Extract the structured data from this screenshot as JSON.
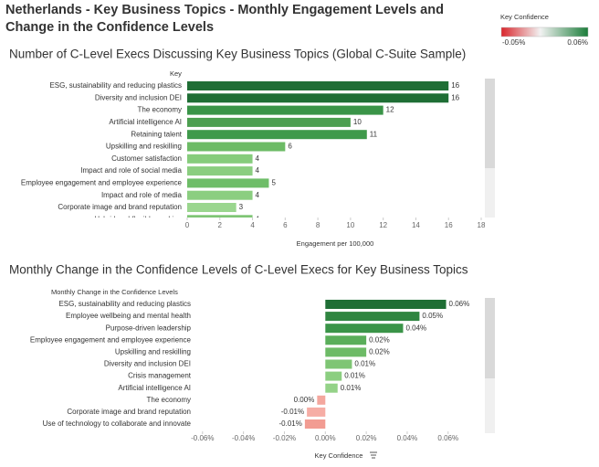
{
  "title": "Netherlands - Key Business Topics - Monthly Engagement Levels and Change in the Confidence Levels",
  "legend": {
    "title": "Key Confidence",
    "min": {
      "value": -0.05,
      "label": "-0.05%"
    },
    "max": {
      "value": 0.06,
      "label": "0.06%"
    },
    "colors": [
      "#d9262c",
      "#f2f2f2",
      "#1b7d3a"
    ]
  },
  "chart_data": [
    {
      "type": "hbar",
      "title": "Number of C-Level Execs Discussing Key Business Topics (Global C-Suite Sample)",
      "category_label": "Key",
      "x_label": "Engagement per 100,000",
      "categories": [
        "ESG, sustainability and reducing plastics",
        "Diversity and inclusion DEI",
        "The economy",
        "Artificial intelligence AI",
        "Retaining talent",
        "Upskilling and reskilling",
        "Customer satisfaction",
        "Impact and role of social media",
        "Employee engagement and employee experience",
        "Impact and role of media",
        "Corporate image and brand reputation",
        "Hybrid and flexible working"
      ],
      "values": [
        16,
        16,
        12,
        10,
        11,
        6,
        4,
        4,
        5,
        4,
        3,
        4
      ],
      "colors": [
        "#1f6e35",
        "#1f6e35",
        "#3a9448",
        "#4c9f50",
        "#3f9a4b",
        "#6dbb66",
        "#86cc7c",
        "#8bce80",
        "#6ebd68",
        "#8bce80",
        "#9ad68e",
        "#7ec574"
      ],
      "xlim": [
        0,
        18
      ],
      "xticks": [
        0,
        2,
        4,
        6,
        8,
        10,
        12,
        14,
        16,
        18
      ]
    },
    {
      "type": "hbar",
      "title": "Monthly Change in the Confidence Levels of C-Level Execs for Key Business Topics",
      "category_label": "Monthly Change in the Confidence Levels",
      "x_label": "Key Confidence",
      "categories": [
        "ESG, sustainability and reducing plastics",
        "Employee wellbeing and mental health",
        "Purpose-driven leadership",
        "Employee engagement and employee experience",
        "Upskilling and reskilling",
        "Diversity and inclusion DEI",
        "Crisis management",
        "Artificial intelligence AI",
        "The economy",
        "Corporate image and brand reputation",
        "Use of technology to collaborate and innovate"
      ],
      "values": [
        0.059,
        0.046,
        0.038,
        0.02,
        0.02,
        0.013,
        0.008,
        0.006,
        -0.004,
        -0.009,
        -0.01
      ],
      "value_labels": [
        "0.06%",
        "0.05%",
        "0.04%",
        "0.02%",
        "0.02%",
        "0.01%",
        "0.01%",
        "0.01%",
        "0.00%",
        "-0.01%",
        "-0.01%"
      ],
      "colors": [
        "#1f6e35",
        "#2f8540",
        "#3a9448",
        "#5aae5a",
        "#6dbb66",
        "#7ec574",
        "#8bce80",
        "#94d288",
        "#f4a79e",
        "#f6ada5",
        "#f29c92"
      ],
      "xlim": [
        -0.0675,
        0.0775
      ],
      "xticks": [
        {
          "value": -0.06,
          "label": "-0.06%"
        },
        {
          "value": -0.04,
          "label": "-0.04%"
        },
        {
          "value": -0.02,
          "label": "-0.02%"
        },
        {
          "value": 0,
          "label": "0.00%"
        },
        {
          "value": 0.02,
          "label": "0.02%"
        },
        {
          "value": 0.04,
          "label": "0.04%"
        },
        {
          "value": 0.06,
          "label": "0.06%"
        }
      ]
    }
  ]
}
